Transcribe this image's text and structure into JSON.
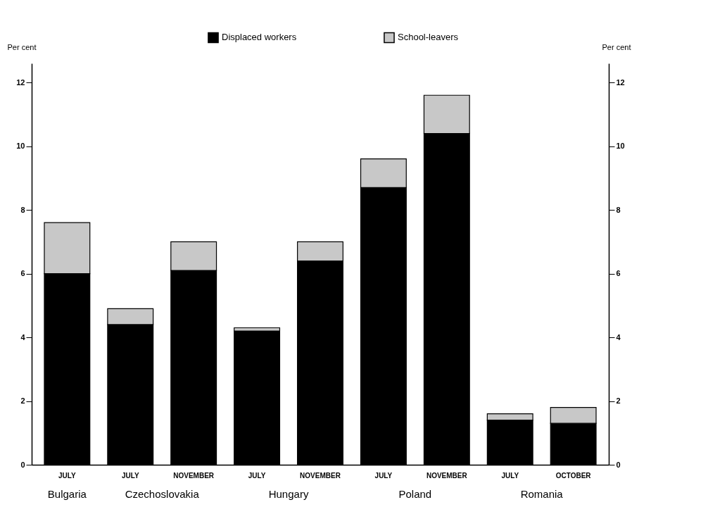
{
  "chart_data": {
    "type": "bar",
    "stacked": true,
    "categories": [
      "JULY",
      "JULY",
      "NOVEMBER",
      "JULY",
      "NOVEMBER",
      "JULY",
      "NOVEMBER",
      "JULY",
      "OCTOBER"
    ],
    "series": [
      {
        "name": "Displaced workers",
        "color": "#000000",
        "values": [
          6.0,
          4.4,
          6.1,
          4.2,
          6.4,
          8.7,
          10.4,
          1.4,
          1.3
        ]
      },
      {
        "name": "School-leavers",
        "color": "#c8c8c8",
        "values": [
          1.6,
          0.5,
          0.9,
          0.1,
          0.6,
          0.9,
          1.2,
          0.2,
          0.5
        ]
      }
    ],
    "ylabel": "Per cent",
    "y2label": "Per cent",
    "ylim": [
      0,
      12.6
    ],
    "yticks": [
      0,
      2,
      4,
      6,
      8,
      10,
      12
    ],
    "y2lim": [
      0,
      12.6
    ],
    "y2ticks": [
      0,
      2,
      4,
      6,
      8,
      10,
      12
    ],
    "annotations": [
      "Bulgaria",
      "Czechoslovakia",
      "Hungary",
      "Poland",
      "Romania"
    ],
    "legend": "top",
    "grid": false
  }
}
